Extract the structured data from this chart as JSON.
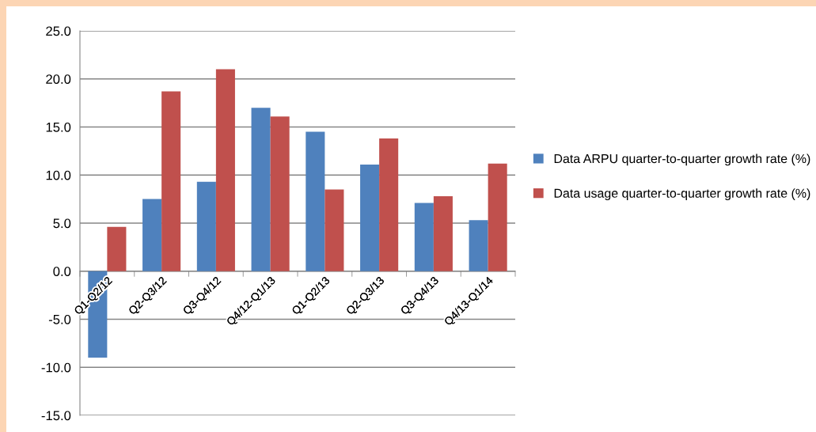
{
  "chart_data": {
    "type": "bar",
    "categories": [
      "Q1-Q2/12",
      "Q2-Q3/12",
      "Q3-Q4/12",
      "Q4/12-Q1/13",
      "Q1-Q2/13",
      "Q2-Q3/13",
      "Q3-Q4/13",
      "Q4/13-Q1/14"
    ],
    "series": [
      {
        "name": "Data ARPU quarter-to-quarter growth rate (%)",
        "color": "#4f81bd",
        "values": [
          -9.0,
          7.5,
          9.3,
          17.0,
          14.5,
          11.1,
          7.1,
          5.3
        ]
      },
      {
        "name": "Data usage quarter-to-quarter growth rate (%)",
        "color": "#c0504d",
        "values": [
          4.6,
          18.7,
          21.0,
          16.1,
          8.5,
          13.8,
          7.8,
          11.2
        ]
      }
    ],
    "ylim": [
      -15,
      25
    ],
    "yticks": [
      {
        "value": -15,
        "label": "-15.0"
      },
      {
        "value": -10,
        "label": "-10.0"
      },
      {
        "value": -5,
        "label": "-5.0"
      },
      {
        "value": 0,
        "label": "0.0"
      },
      {
        "value": 5,
        "label": "5.0"
      },
      {
        "value": 10,
        "label": "10.0"
      },
      {
        "value": 15,
        "label": "15.0"
      },
      {
        "value": 20,
        "label": "20.0"
      },
      {
        "value": 25,
        "label": "25.0"
      }
    ],
    "grid": "y",
    "legend": "right"
  }
}
